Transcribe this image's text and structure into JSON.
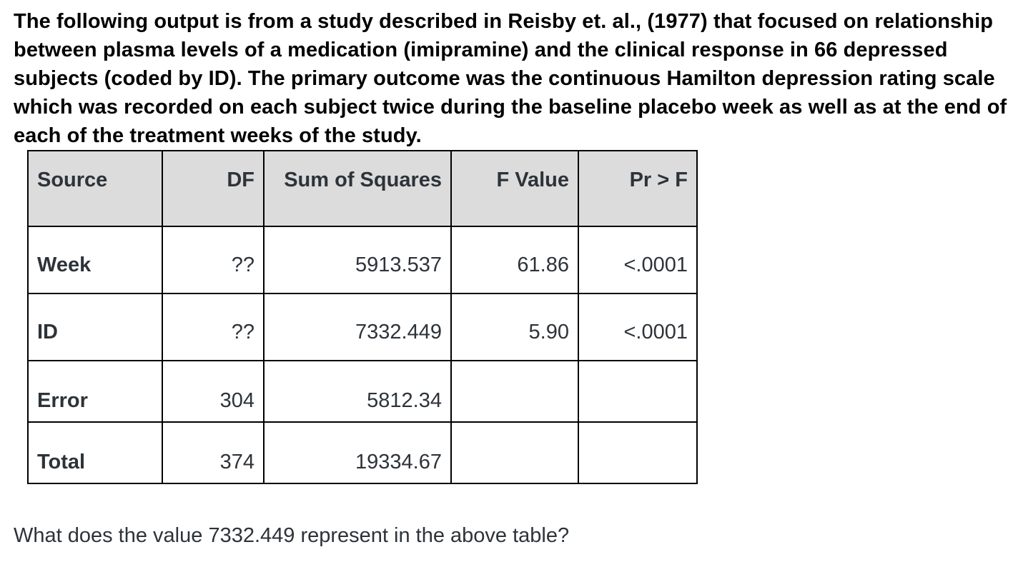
{
  "intro_text": "The following output is from a study described in Reisby et. al., (1977) that focused on relationship between plasma levels of a medication (imipramine) and the clinical response in 66 depressed subjects (coded by ID). The primary outcome was the continuous Hamilton depression rating scale which was recorded on each subject twice during the baseline placebo week as well as at the end of each of the treatment weeks of the study.",
  "table": {
    "headers": {
      "source": "Source",
      "df": "DF",
      "ss": "Sum of Squares",
      "f": "F Value",
      "p": "Pr > F"
    },
    "rows": [
      {
        "source": "Week",
        "df": "??",
        "ss": "5913.537",
        "f": "61.86",
        "p": "<.0001"
      },
      {
        "source": "ID",
        "df": "??",
        "ss": "7332.449",
        "f": "5.90",
        "p": "<.0001"
      },
      {
        "source": "Error",
        "df": "304",
        "ss": "5812.34",
        "f": "",
        "p": ""
      },
      {
        "source": "Total",
        "df": "374",
        "ss": "19334.67",
        "f": "",
        "p": ""
      }
    ]
  },
  "question_text": "What does the value 7332.449 represent in the above table?"
}
